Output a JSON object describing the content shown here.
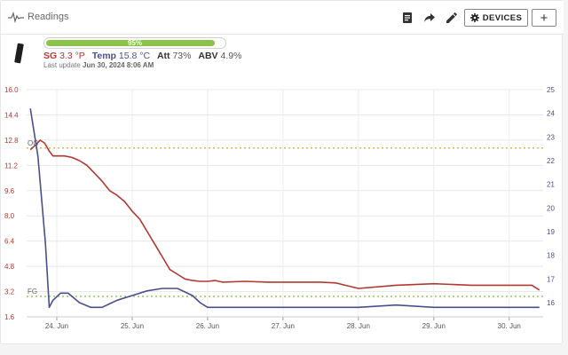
{
  "header": {
    "title": "Readings",
    "devices_label": "DEVICES",
    "add_label": "+"
  },
  "battery": {
    "percent_label": "95%",
    "level": 0.95
  },
  "readouts": {
    "sg_label": "SG",
    "sg_value": "3.3 °P",
    "temp_label": "Temp",
    "temp_value": "15.8 °C",
    "att_label": "Att",
    "att_value": "73%",
    "abv_label": "ABV",
    "abv_value": "4.9%"
  },
  "last_update": {
    "label": "Last update",
    "value": "Jun 30, 2024 8:06 AM"
  },
  "colors": {
    "sg": "#b03a32",
    "temp": "#4a4e8c",
    "battery": "#8bc34a",
    "og_line": "#d9b44a",
    "fg_line": "#8bc34a"
  },
  "chart_data": {
    "type": "line",
    "x_unit": "days (June 2024)",
    "x_range": [
      23.6,
      30.45
    ],
    "x_ticks": [
      24,
      25,
      26,
      27,
      28,
      29,
      30
    ],
    "x_tick_labels": [
      "24. Jun",
      "25. Jun",
      "26. Jun",
      "27. Jun",
      "28. Jun",
      "29. Jun",
      "30. Jun"
    ],
    "y_left": {
      "range": [
        1.6,
        16.0
      ],
      "ticks": [
        "1.6",
        "3.2",
        "4.8",
        "6.4",
        "8.0",
        "9.6",
        "11.2",
        "12.8",
        "14.4",
        "16.0"
      ]
    },
    "y_right": {
      "range": [
        15.4,
        25.0
      ],
      "ticks": [
        "16",
        "17",
        "18",
        "19",
        "20",
        "21",
        "22",
        "23",
        "24",
        "25"
      ]
    },
    "grid": true,
    "annotations": [
      {
        "label": "OG",
        "value": 12.3,
        "axis": "left"
      },
      {
        "label": "FG",
        "value": 2.9,
        "axis": "left"
      }
    ],
    "series": [
      {
        "axis": "left",
        "x": [
          23.65,
          23.72,
          23.78,
          23.84,
          23.9,
          23.95,
          24.1,
          24.2,
          24.3,
          24.4,
          24.5,
          24.6,
          24.7,
          24.8,
          24.9,
          25.0,
          25.1,
          25.2,
          25.3,
          25.4,
          25.5,
          25.6,
          25.7,
          25.8,
          25.9,
          26.0,
          26.1,
          26.2,
          26.5,
          26.8,
          27.0,
          27.5,
          27.7,
          28.0,
          28.5,
          29.0,
          29.5,
          30.0,
          30.3,
          30.4
        ],
        "values": [
          12.2,
          12.5,
          12.8,
          12.6,
          12.1,
          11.8,
          11.8,
          11.7,
          11.5,
          11.2,
          10.7,
          10.2,
          9.6,
          9.3,
          8.9,
          8.3,
          7.8,
          7.0,
          6.2,
          5.4,
          4.6,
          4.3,
          4.0,
          3.9,
          3.85,
          3.85,
          3.9,
          3.8,
          3.85,
          3.8,
          3.8,
          3.8,
          3.75,
          3.4,
          3.6,
          3.7,
          3.6,
          3.6,
          3.6,
          3.3
        ]
      },
      {
        "axis": "right",
        "x": [
          23.65,
          23.75,
          23.85,
          23.9,
          23.95,
          24.05,
          24.15,
          24.3,
          24.45,
          24.6,
          24.8,
          25.0,
          25.2,
          25.4,
          25.6,
          25.8,
          25.9,
          26.0,
          26.2,
          26.5,
          27.0,
          27.5,
          28.0,
          28.5,
          29.0,
          29.5,
          30.0,
          30.4
        ],
        "values": [
          24.2,
          22.2,
          18.5,
          15.8,
          16.1,
          16.4,
          16.4,
          16.0,
          15.8,
          15.8,
          16.1,
          16.3,
          16.5,
          16.6,
          16.6,
          16.3,
          16.0,
          15.8,
          15.8,
          15.8,
          15.8,
          15.8,
          15.8,
          15.9,
          15.8,
          15.8,
          15.8,
          15.8
        ]
      }
    ]
  }
}
